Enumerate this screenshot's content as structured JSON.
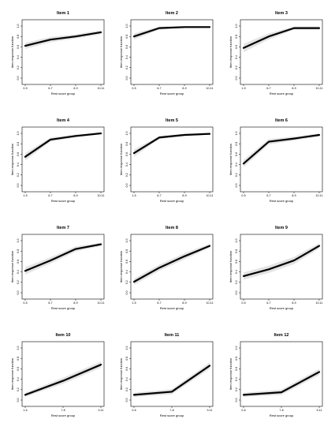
{
  "figure": {
    "series_color": "#000000",
    "band_color": "#e3e3e3"
  },
  "chart_data": [
    {
      "type": "line",
      "title": "Item 1",
      "xlabel": "Rest score group",
      "ylabel": "Item response function",
      "categories": [
        "0-5",
        "6-7",
        "8-9",
        "10-11"
      ],
      "values": [
        0.62,
        0.74,
        0.8,
        0.88
      ],
      "band_lower": [
        0.56,
        0.69,
        0.76,
        0.84
      ],
      "band_upper": [
        0.68,
        0.79,
        0.84,
        0.92
      ],
      "ylim": [
        0,
        1
      ],
      "yticks": [
        "0.0",
        "0.2",
        "0.4",
        "0.6",
        "0.8",
        "1.0"
      ]
    },
    {
      "type": "line",
      "title": "Item 2",
      "xlabel": "Rest score group",
      "ylabel": "Item response function",
      "categories": [
        "0-5",
        "6-7",
        "8-9",
        "10-11"
      ],
      "values": [
        0.8,
        0.96,
        0.98,
        0.98
      ],
      "band_lower": [
        0.74,
        0.93,
        0.96,
        0.97
      ],
      "band_upper": [
        0.86,
        0.99,
        1.0,
        1.0
      ],
      "ylim": [
        0,
        1
      ],
      "yticks": [
        "0.0",
        "0.2",
        "0.4",
        "0.6",
        "0.8",
        "1.0"
      ]
    },
    {
      "type": "line",
      "title": "Item 3",
      "xlabel": "Rest score group",
      "ylabel": "Item response function",
      "categories": [
        "1-5",
        "6-7",
        "8-9",
        "10-11"
      ],
      "values": [
        0.58,
        0.8,
        0.96,
        0.96
      ],
      "band_lower": [
        0.5,
        0.74,
        0.93,
        0.93
      ],
      "band_upper": [
        0.66,
        0.86,
        0.99,
        0.99
      ],
      "ylim": [
        0,
        1
      ],
      "yticks": [
        "0.0",
        "0.2",
        "0.4",
        "0.6",
        "0.8",
        "1.0"
      ]
    },
    {
      "type": "line",
      "title": "Item 4",
      "xlabel": "Rest score group",
      "ylabel": "Item response function",
      "categories": [
        "1-5",
        "6-7",
        "8-9",
        "10-11"
      ],
      "values": [
        0.55,
        0.88,
        0.95,
        1.0
      ],
      "band_lower": [
        0.48,
        0.84,
        0.92,
        0.98
      ],
      "band_upper": [
        0.62,
        0.92,
        0.98,
        1.0
      ],
      "ylim": [
        0,
        1
      ],
      "yticks": [
        "0.0",
        "0.2",
        "0.4",
        "0.6",
        "0.8",
        "1.0"
      ]
    },
    {
      "type": "line",
      "title": "Item 5",
      "xlabel": "Rest score group",
      "ylabel": "Item response function",
      "categories": [
        "1-5",
        "6-7",
        "8-9",
        "10-11"
      ],
      "values": [
        0.62,
        0.92,
        0.97,
        0.99
      ],
      "band_lower": [
        0.55,
        0.89,
        0.95,
        0.98
      ],
      "band_upper": [
        0.69,
        0.95,
        0.99,
        1.0
      ],
      "ylim": [
        0,
        1
      ],
      "yticks": [
        "0.0",
        "0.2",
        "0.4",
        "0.6",
        "0.8",
        "1.0"
      ]
    },
    {
      "type": "line",
      "title": "Item 6",
      "xlabel": "Rest score group",
      "ylabel": "Item response function",
      "categories": [
        "0-5",
        "6-7",
        "8-9",
        "10-11"
      ],
      "values": [
        0.42,
        0.84,
        0.9,
        0.97
      ],
      "band_lower": [
        0.35,
        0.79,
        0.86,
        0.94
      ],
      "band_upper": [
        0.49,
        0.89,
        0.94,
        1.0
      ],
      "ylim": [
        0,
        1
      ],
      "yticks": [
        "0.0",
        "0.2",
        "0.4",
        "0.6",
        "0.8",
        "1.0"
      ]
    },
    {
      "type": "line",
      "title": "Item 7",
      "xlabel": "Rest score group",
      "ylabel": "Item response function",
      "categories": [
        "0-5",
        "6-7",
        "8-9",
        "10-11"
      ],
      "values": [
        0.42,
        0.62,
        0.84,
        0.93
      ],
      "band_lower": [
        0.35,
        0.56,
        0.79,
        0.9
      ],
      "band_upper": [
        0.49,
        0.68,
        0.89,
        0.96
      ],
      "ylim": [
        0,
        1
      ],
      "yticks": [
        "0.0",
        "0.2",
        "0.4",
        "0.6",
        "0.8",
        "1.0"
      ]
    },
    {
      "type": "line",
      "title": "Item 8",
      "xlabel": "Rest score group",
      "ylabel": "Item response function",
      "categories": [
        "1-5",
        "6-7",
        "8-9",
        "10-11"
      ],
      "values": [
        0.21,
        0.48,
        0.7,
        0.9
      ],
      "band_lower": [
        0.15,
        0.42,
        0.64,
        0.86
      ],
      "band_upper": [
        0.27,
        0.54,
        0.76,
        0.94
      ],
      "ylim": [
        0,
        1
      ],
      "yticks": [
        "0.0",
        "0.2",
        "0.4",
        "0.6",
        "0.8",
        "1.0"
      ]
    },
    {
      "type": "line",
      "title": "Item 9",
      "xlabel": "Rest score group",
      "ylabel": "Item response function",
      "categories": [
        "0-5",
        "6-7",
        "8-9",
        "10-11"
      ],
      "values": [
        0.32,
        0.45,
        0.62,
        0.9
      ],
      "band_lower": [
        0.25,
        0.38,
        0.55,
        0.85
      ],
      "band_upper": [
        0.39,
        0.52,
        0.69,
        0.95
      ],
      "ylim": [
        0,
        1
      ],
      "yticks": [
        "0.0",
        "0.2",
        "0.4",
        "0.6",
        "0.8",
        "1.0"
      ]
    },
    {
      "type": "line",
      "title": "Item 10",
      "xlabel": "Rest score group",
      "ylabel": "Item response function",
      "categories": [
        "1-6",
        "7-8",
        "9-11"
      ],
      "values": [
        0.1,
        0.37,
        0.68
      ],
      "band_lower": [
        0.06,
        0.31,
        0.62
      ],
      "band_upper": [
        0.14,
        0.43,
        0.74
      ],
      "ylim": [
        0,
        1
      ],
      "yticks": [
        "0.0",
        "0.2",
        "0.4",
        "0.6",
        "0.8",
        "1.0"
      ]
    },
    {
      "type": "line",
      "title": "Item 11",
      "xlabel": "Rest score group",
      "ylabel": "Item response function",
      "categories": [
        "0-6",
        "7-8",
        "9-11"
      ],
      "values": [
        0.1,
        0.16,
        0.66
      ],
      "band_lower": [
        0.06,
        0.11,
        0.6
      ],
      "band_upper": [
        0.14,
        0.21,
        0.72
      ],
      "ylim": [
        0,
        1
      ],
      "yticks": [
        "0.0",
        "0.2",
        "0.4",
        "0.6",
        "0.8",
        "1.0"
      ]
    },
    {
      "type": "line",
      "title": "Item 12",
      "xlabel": "Rest score group",
      "ylabel": "Item response function",
      "categories": [
        "0-6",
        "7-8",
        "9-11"
      ],
      "values": [
        0.1,
        0.15,
        0.54
      ],
      "band_lower": [
        0.06,
        0.1,
        0.48
      ],
      "band_upper": [
        0.14,
        0.2,
        0.6
      ],
      "ylim": [
        0,
        1
      ],
      "yticks": [
        "0.0",
        "0.2",
        "0.4",
        "0.6",
        "0.8",
        "1.0"
      ]
    }
  ]
}
